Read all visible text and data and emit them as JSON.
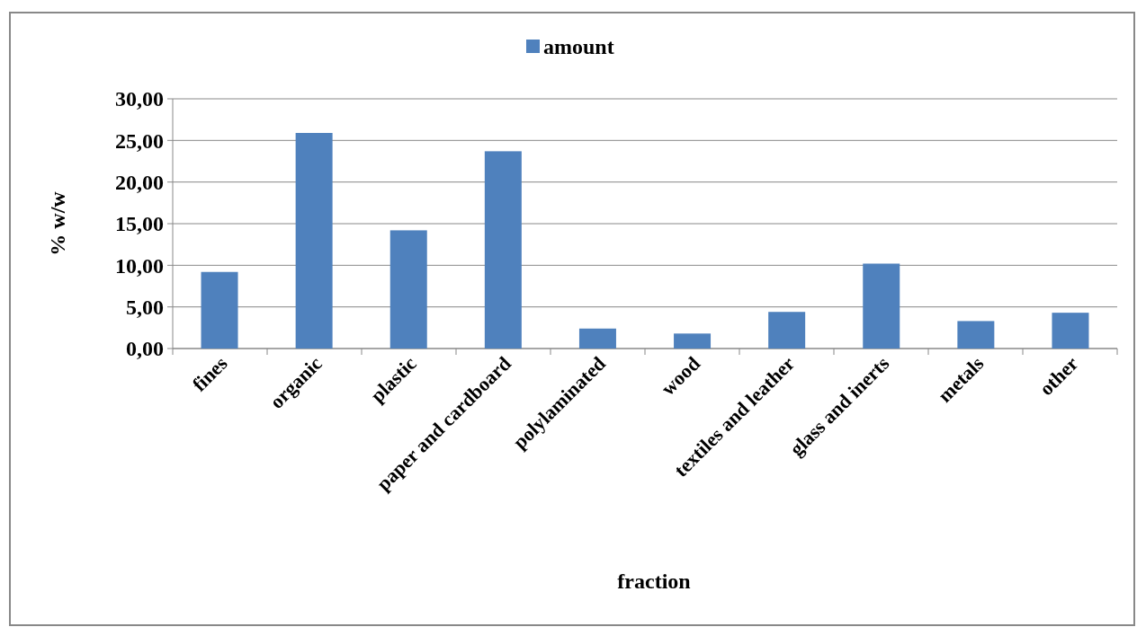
{
  "chart_data": {
    "type": "bar",
    "xlabel": "fraction",
    "ylabel": "% w/w",
    "categories": [
      "fines",
      "organic",
      "plastic",
      "paper and cardboard",
      "polylaminated",
      "wood",
      "textiles and leather",
      "glass and inerts",
      "metals",
      "other"
    ],
    "series": [
      {
        "name": "amount",
        "color": "#4f81bd",
        "values": [
          9.2,
          25.9,
          14.2,
          23.7,
          2.4,
          1.8,
          4.4,
          10.2,
          3.3,
          4.3
        ]
      }
    ],
    "ylim": [
      0,
      30
    ],
    "yticks": [
      {
        "value": 0,
        "label": "0,00"
      },
      {
        "value": 5,
        "label": "5,00"
      },
      {
        "value": 10,
        "label": "10,00"
      },
      {
        "value": 15,
        "label": "15,00"
      },
      {
        "value": 20,
        "label": "20,00"
      },
      {
        "value": 25,
        "label": "25,00"
      },
      {
        "value": 30,
        "label": "30,00"
      }
    ],
    "grid": "y",
    "legend": "top"
  }
}
